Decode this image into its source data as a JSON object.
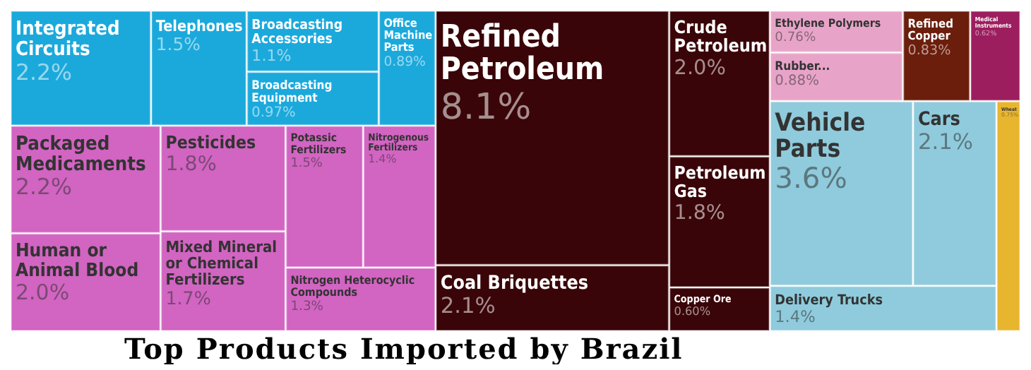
{
  "chart_data": {
    "type": "other",
    "title": "Top Products Imported by Brazil",
    "categories": [
      "Integrated Circuits",
      "Telephones",
      "Broadcasting Accessories",
      "Broadcasting Equipment",
      "Office Machine Parts",
      "Packaged Medicaments",
      "Human or Animal Blood",
      "Pesticides",
      "Mixed Mineral or Chemical Fertilizers",
      "Potassic Fertilizers",
      "Nitrogenous Fertilizers",
      "Nitrogen Heterocyclic Compounds",
      "Refined Petroleum",
      "Coal Briquettes",
      "Crude Petroleum",
      "Petroleum Gas",
      "Copper Ore",
      "Ethylene Polymers",
      "Rubber...",
      "Refined Copper",
      "Medical Instruments",
      "Vehicle Parts",
      "Cars",
      "Delivery Trucks",
      "Wheat"
    ],
    "values": [
      2.2,
      1.5,
      1.1,
      0.97,
      0.89,
      2.2,
      2.0,
      1.8,
      1.7,
      1.5,
      1.4,
      1.3,
      8.1,
      2.1,
      2.0,
      1.8,
      0.6,
      0.76,
      0.88,
      0.83,
      0.62,
      3.6,
      2.1,
      1.4,
      0.75
    ],
    "value_labels": [
      "2.2%",
      "1.5%",
      "1.1%",
      "0.97%",
      "0.89%",
      "2.2%",
      "2.0%",
      "1.8%",
      "1.7%",
      "1.5%",
      "1.4%",
      "1.3%",
      "8.1%",
      "2.1%",
      "2.0%",
      "1.8%",
      "0.60%",
      "0.76%",
      "0.88%",
      "0.83%",
      "0.62%",
      "3.6%",
      "2.1%",
      "1.4%",
      "0.75%"
    ],
    "colors": [
      "#1ba9dc",
      "#1ba9dc",
      "#1ba9dc",
      "#1ba9dc",
      "#1ba9dc",
      "#d264c2",
      "#d264c2",
      "#d264c2",
      "#d264c2",
      "#d264c2",
      "#d264c2",
      "#d264c2",
      "#3a0508",
      "#3a0508",
      "#3a0508",
      "#3a0508",
      "#3a0508",
      "#e8a4c8",
      "#e8a4c8",
      "#6b1e0c",
      "#9c1e5e",
      "#8fcbdc",
      "#8fcbdc",
      "#8fcbdc",
      "#e8b52e"
    ]
  }
}
